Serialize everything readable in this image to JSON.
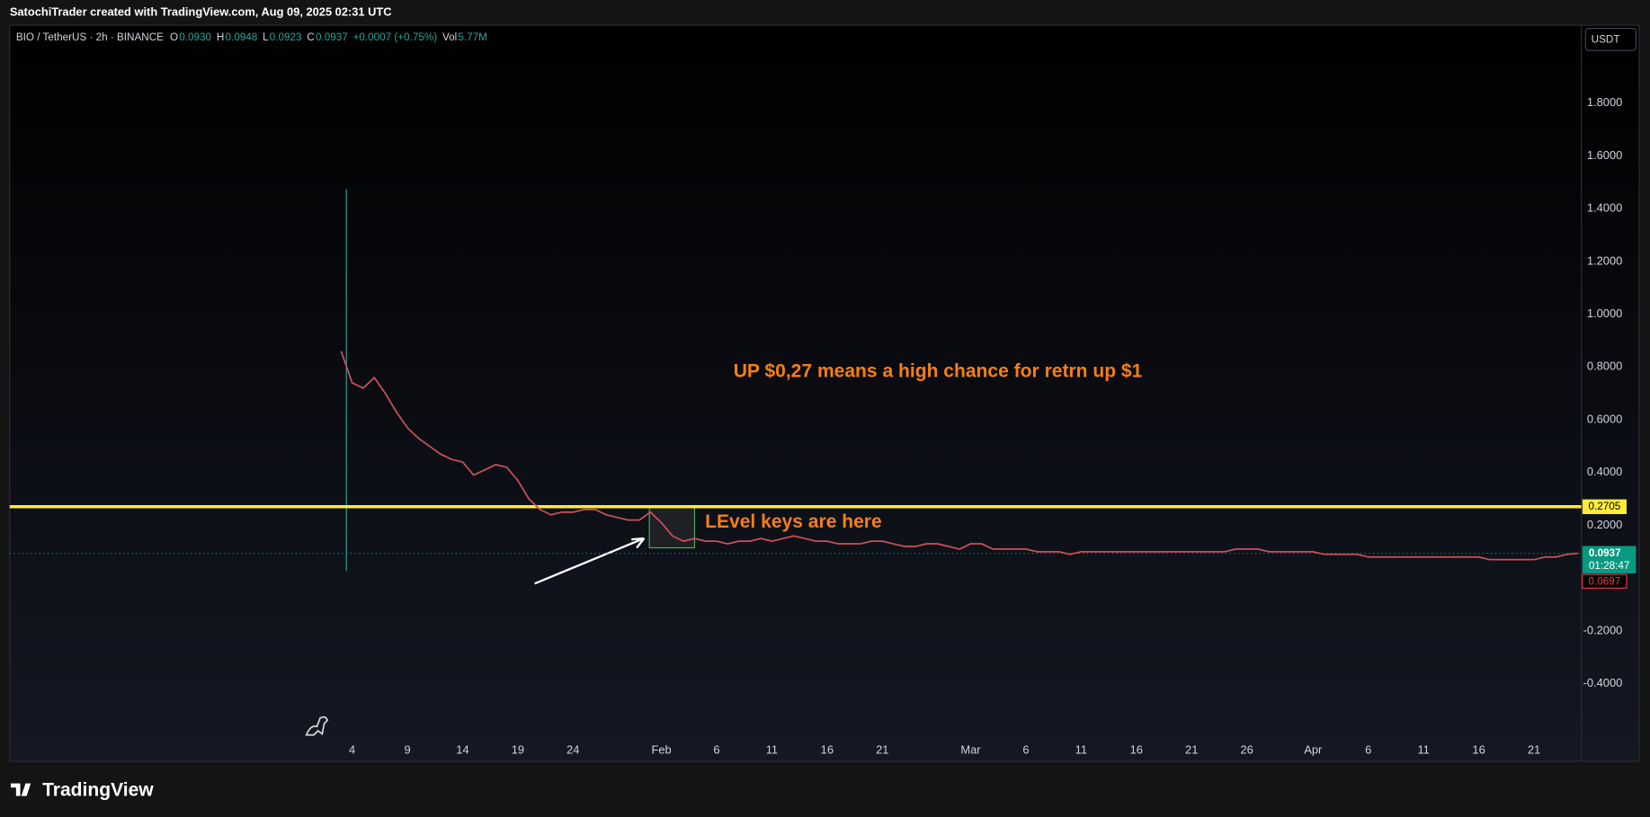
{
  "header": {
    "credit": "SatochiTrader created with TradingView.com, Aug 09, 2025 02:31 UTC",
    "symbol": "BIO / TetherUS · 2h · BINANCE",
    "ohlc": [
      {
        "key": "O",
        "value": "0.0930"
      },
      {
        "key": "H",
        "value": "0.0948"
      },
      {
        "key": "L",
        "value": "0.0923"
      },
      {
        "key": "C",
        "value": "0.0937"
      }
    ],
    "change": "+0.0007 (+0.75%)",
    "volume_key": "Vol",
    "volume": "5.77M",
    "currency": "USDT",
    "brand": "TradingView"
  },
  "chart_data": {
    "type": "line",
    "color": "#c9505a",
    "grid": false,
    "categories": [
      null,
      "4",
      null,
      null,
      null,
      null,
      "9",
      null,
      null,
      null,
      null,
      "14",
      null,
      null,
      null,
      null,
      "19",
      null,
      null,
      null,
      null,
      "24",
      null,
      null,
      null,
      null,
      null,
      null,
      null,
      "Feb",
      null,
      null,
      null,
      null,
      "6",
      null,
      null,
      null,
      null,
      "11",
      null,
      null,
      null,
      null,
      "16",
      null,
      null,
      null,
      null,
      "21",
      null,
      null,
      null,
      null,
      null,
      null,
      null,
      "Mar",
      null,
      null,
      null,
      null,
      "6",
      null,
      null,
      null,
      null,
      "11",
      null,
      null,
      null,
      null,
      "16",
      null,
      null,
      null,
      null,
      "21",
      null,
      null,
      null,
      null,
      "26",
      null,
      null,
      null,
      null,
      null,
      "Apr",
      null,
      null,
      null,
      null,
      "6",
      null,
      null,
      null,
      null,
      "11",
      null,
      null,
      null,
      null,
      "16",
      null,
      null,
      null,
      null,
      "21",
      null,
      null,
      null,
      null
    ],
    "values": [
      0.86,
      0.74,
      0.72,
      0.76,
      0.7,
      0.63,
      0.57,
      0.53,
      0.5,
      0.47,
      0.45,
      0.44,
      0.39,
      0.41,
      0.43,
      0.42,
      0.37,
      0.3,
      0.26,
      0.24,
      0.25,
      0.25,
      0.26,
      0.26,
      0.24,
      0.23,
      0.22,
      0.22,
      0.25,
      0.21,
      0.16,
      0.14,
      0.15,
      0.14,
      0.14,
      0.13,
      0.14,
      0.14,
      0.15,
      0.14,
      0.15,
      0.16,
      0.15,
      0.14,
      0.14,
      0.13,
      0.13,
      0.13,
      0.14,
      0.14,
      0.13,
      0.12,
      0.12,
      0.13,
      0.13,
      0.12,
      0.11,
      0.13,
      0.13,
      0.11,
      0.11,
      0.11,
      0.11,
      0.1,
      0.1,
      0.1,
      0.09,
      0.1,
      0.1,
      0.1,
      0.1,
      0.1,
      0.1,
      0.1,
      0.1,
      0.1,
      0.1,
      0.1,
      0.1,
      0.1,
      0.1,
      0.11,
      0.11,
      0.11,
      0.1,
      0.1,
      0.1,
      0.1,
      0.1,
      0.09,
      0.09,
      0.09,
      0.09,
      0.08,
      0.08,
      0.08,
      0.08,
      0.08,
      0.08,
      0.08,
      0.08,
      0.08,
      0.08,
      0.08,
      0.07,
      0.07,
      0.07,
      0.07,
      0.07,
      0.08,
      0.08,
      0.09,
      0.094
    ],
    "ylim": [
      -0.694,
      2.095
    ],
    "yticks": [
      {
        "value": -0.4,
        "label": "-0.4000"
      },
      {
        "value": -0.2,
        "label": "-0.2000"
      },
      {
        "value": 0.2,
        "label": "0.2000"
      },
      {
        "value": 0.4,
        "label": "0.4000"
      },
      {
        "value": 0.6,
        "label": "0.6000"
      },
      {
        "value": 0.8,
        "label": "0.8000"
      },
      {
        "value": 1.0,
        "label": "1.0000"
      },
      {
        "value": 1.2,
        "label": "1.2000"
      },
      {
        "value": 1.4,
        "label": "1.4000"
      },
      {
        "value": 1.6,
        "label": "1.6000"
      },
      {
        "value": 1.8,
        "label": "1.8000"
      }
    ],
    "level": {
      "value": 0.2705,
      "label": "0.2705",
      "color": "#ffeb3b"
    },
    "last_price": {
      "value": 0.0937,
      "label": "0.0937",
      "countdown": "01:28:47",
      "color": "#089981"
    },
    "low_label": "0.0697",
    "annotations": [
      "UP $0,27 means a high chance for retrn up $1",
      "LEvel keys are here"
    ]
  }
}
